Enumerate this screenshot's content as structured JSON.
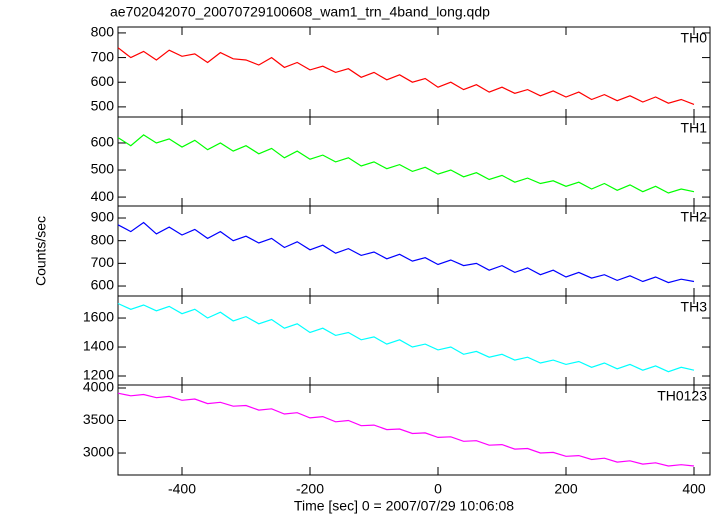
{
  "chart_data": [
    {
      "type": "line",
      "title": "ae702042070_20070729100608_wam1_trn_4band_long.qdp",
      "x": [
        -500,
        -480,
        -460,
        -440,
        -420,
        -400,
        -380,
        -360,
        -340,
        -320,
        -300,
        -280,
        -260,
        -240,
        -220,
        -200,
        -180,
        -160,
        -140,
        -120,
        -100,
        -80,
        -60,
        -40,
        -20,
        0,
        20,
        40,
        60,
        80,
        100,
        120,
        140,
        160,
        180,
        200,
        220,
        240,
        260,
        280,
        300,
        320,
        340,
        360,
        380,
        400
      ],
      "series": [
        {
          "name": "TH0",
          "color": "#ff0000",
          "values": [
            740,
            700,
            725,
            690,
            730,
            705,
            715,
            680,
            720,
            695,
            690,
            670,
            700,
            660,
            680,
            650,
            665,
            640,
            655,
            620,
            640,
            610,
            630,
            600,
            615,
            580,
            600,
            570,
            590,
            560,
            580,
            555,
            570,
            545,
            565,
            540,
            560,
            530,
            550,
            525,
            545,
            520,
            540,
            515,
            530,
            510
          ]
        }
      ],
      "xlim": [
        -500,
        425
      ],
      "ylim": [
        459,
        824
      ],
      "yticks": [
        500,
        600,
        700,
        800
      ]
    },
    {
      "type": "line",
      "x": [
        -500,
        -480,
        -460,
        -440,
        -420,
        -400,
        -380,
        -360,
        -340,
        -320,
        -300,
        -280,
        -260,
        -240,
        -220,
        -200,
        -180,
        -160,
        -140,
        -120,
        -100,
        -80,
        -60,
        -40,
        -20,
        0,
        20,
        40,
        60,
        80,
        100,
        120,
        140,
        160,
        180,
        200,
        220,
        240,
        260,
        280,
        300,
        320,
        340,
        360,
        380,
        400
      ],
      "series": [
        {
          "name": "TH1",
          "color": "#00ff00",
          "values": [
            620,
            590,
            630,
            600,
            615,
            585,
            610,
            575,
            600,
            570,
            590,
            560,
            580,
            545,
            570,
            540,
            555,
            530,
            545,
            515,
            530,
            505,
            520,
            495,
            510,
            485,
            500,
            475,
            490,
            465,
            480,
            455,
            470,
            450,
            460,
            440,
            455,
            430,
            450,
            425,
            445,
            420,
            440,
            415,
            430,
            420
          ]
        }
      ],
      "xlim": [
        -500,
        425
      ],
      "ylim": [
        367,
        696
      ],
      "yticks": [
        400,
        500,
        600
      ]
    },
    {
      "type": "line",
      "ylabel": "Counts/sec",
      "x": [
        -500,
        -480,
        -460,
        -440,
        -420,
        -400,
        -380,
        -360,
        -340,
        -320,
        -300,
        -280,
        -260,
        -240,
        -220,
        -200,
        -180,
        -160,
        -140,
        -120,
        -100,
        -80,
        -60,
        -40,
        -20,
        0,
        20,
        40,
        60,
        80,
        100,
        120,
        140,
        160,
        180,
        200,
        220,
        240,
        260,
        280,
        300,
        320,
        340,
        360,
        380,
        400
      ],
      "series": [
        {
          "name": "TH2",
          "color": "#0000ff",
          "values": [
            870,
            840,
            880,
            830,
            860,
            825,
            850,
            810,
            840,
            800,
            820,
            790,
            810,
            770,
            795,
            760,
            780,
            745,
            765,
            735,
            750,
            720,
            740,
            710,
            725,
            695,
            715,
            690,
            700,
            670,
            690,
            660,
            680,
            650,
            670,
            640,
            660,
            635,
            650,
            625,
            645,
            620,
            640,
            615,
            630,
            620
          ]
        }
      ],
      "xlim": [
        -500,
        425
      ],
      "ylim": [
        556,
        953
      ],
      "yticks": [
        600,
        700,
        800,
        900
      ]
    },
    {
      "type": "line",
      "x": [
        -500,
        -480,
        -460,
        -440,
        -420,
        -400,
        -380,
        -360,
        -340,
        -320,
        -300,
        -280,
        -260,
        -240,
        -220,
        -200,
        -180,
        -160,
        -140,
        -120,
        -100,
        -80,
        -60,
        -40,
        -20,
        0,
        20,
        40,
        60,
        80,
        100,
        120,
        140,
        160,
        180,
        200,
        220,
        240,
        260,
        280,
        300,
        320,
        340,
        360,
        380,
        400
      ],
      "series": [
        {
          "name": "TH3",
          "color": "#00ffff",
          "values": [
            1700,
            1660,
            1690,
            1650,
            1680,
            1630,
            1660,
            1600,
            1640,
            1580,
            1610,
            1560,
            1590,
            1530,
            1560,
            1500,
            1530,
            1480,
            1500,
            1450,
            1470,
            1420,
            1450,
            1400,
            1420,
            1380,
            1400,
            1350,
            1370,
            1330,
            1350,
            1310,
            1330,
            1290,
            1310,
            1280,
            1300,
            1260,
            1290,
            1250,
            1280,
            1240,
            1270,
            1230,
            1260,
            1240
          ]
        }
      ],
      "xlim": [
        -500,
        425
      ],
      "ylim": [
        1138,
        1752
      ],
      "yticks": [
        1200,
        1400,
        1600
      ]
    },
    {
      "type": "line",
      "xlabel": "Time [sec] 0 = 2007/07/29 10:06:08",
      "x": [
        -500,
        -480,
        -460,
        -440,
        -420,
        -400,
        -380,
        -360,
        -340,
        -320,
        -300,
        -280,
        -260,
        -240,
        -220,
        -200,
        -180,
        -160,
        -140,
        -120,
        -100,
        -80,
        -60,
        -40,
        -20,
        0,
        20,
        40,
        60,
        80,
        100,
        120,
        140,
        160,
        180,
        200,
        220,
        240,
        260,
        280,
        300,
        320,
        340,
        360,
        380,
        400
      ],
      "series": [
        {
          "name": "TH0123",
          "color": "#ff00ff",
          "values": [
            3920,
            3880,
            3900,
            3850,
            3870,
            3810,
            3830,
            3760,
            3780,
            3720,
            3730,
            3660,
            3680,
            3600,
            3620,
            3540,
            3560,
            3480,
            3500,
            3420,
            3430,
            3360,
            3370,
            3300,
            3310,
            3240,
            3250,
            3180,
            3190,
            3120,
            3130,
            3060,
            3070,
            3000,
            3010,
            2950,
            2960,
            2900,
            2920,
            2860,
            2880,
            2830,
            2850,
            2800,
            2820,
            2800
          ]
        }
      ],
      "xlim": [
        -500,
        425
      ],
      "ylim": [
        2662,
        4046
      ],
      "yticks": [
        3000,
        3500,
        4000
      ],
      "xticks": [
        -400,
        -200,
        0,
        200,
        400
      ]
    }
  ]
}
